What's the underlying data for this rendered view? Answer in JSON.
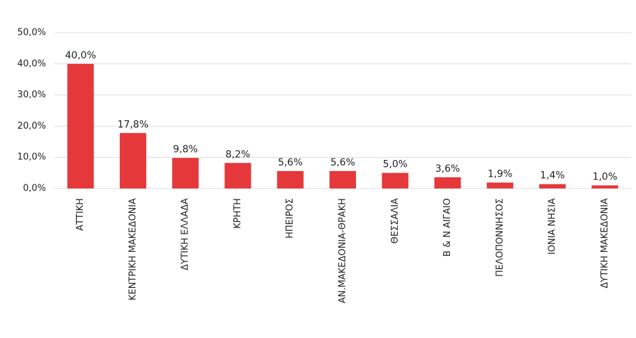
{
  "chart_data": {
    "type": "bar",
    "categories": [
      "ΑΤΤΙΚΗ",
      "ΚΕΝΤΡΙΚΗ ΜΑΚΕΔΟΝΙΑ",
      "ΔΥΤΙΚΗ ΕΛΛΑΔΑ",
      "ΚΡΗΤΗ",
      "ΗΠΕΙΡΟΣ",
      "ΑΝ.ΜΑΚΕΔΟΝΙΑ-ΘΡΑΚΗ",
      "ΘΕΣΣΑΛΙΑ",
      "Β & Ν ΑΙΓΑΙΟ",
      "ΠΕΛΟΠΟΝΝΗΣΟΣ",
      "ΙΟΝΙΑ ΝΗΣΙΑ",
      "ΔΥΤΙΚΗ ΜΑΚΕΔΟΝΙΑ"
    ],
    "values": [
      40.0,
      17.8,
      9.8,
      8.2,
      5.6,
      5.6,
      5.0,
      3.6,
      1.9,
      1.4,
      1.0
    ],
    "value_labels": [
      "40,0%",
      "17,8%",
      "9,8%",
      "8,2%",
      "5,6%",
      "5,6%",
      "5,0%",
      "3,6%",
      "1,9%",
      "1,4%",
      "1,0%"
    ],
    "color": "#e5383b",
    "ylim": [
      0,
      50
    ],
    "yticks": [
      {
        "value": 0,
        "label": "0,0%"
      },
      {
        "value": 10,
        "label": "10,0%"
      },
      {
        "value": 20,
        "label": "20,0%"
      },
      {
        "value": 30,
        "label": "30,0%"
      },
      {
        "value": 40,
        "label": "40,0%"
      },
      {
        "value": 50,
        "label": "50,0%"
      }
    ],
    "grid": true
  }
}
